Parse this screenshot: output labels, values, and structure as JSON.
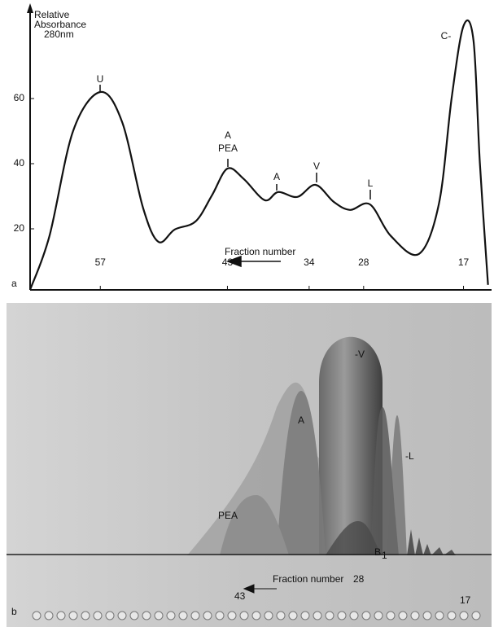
{
  "chart_data": {
    "type": "line",
    "panel_label": "a",
    "y_label": [
      "Relative",
      "Absorbance",
      "280nm"
    ],
    "x_label": "Fraction number",
    "xlim": [
      65,
      14
    ],
    "xticks": [
      57,
      43,
      34,
      28,
      17
    ],
    "ylim": [
      0,
      88
    ],
    "yticks": [
      20,
      40,
      60
    ],
    "grid": false,
    "series": [
      {
        "color": "#111111",
        "x": [
          64.7,
          62.6,
          60,
          57,
          54.6,
          52.3,
          50.6,
          48.8,
          46.5,
          44.7,
          43,
          41.2,
          38.9,
          37.4,
          35.3,
          33.3,
          31.3,
          29.5,
          27.3,
          25,
          21.9,
          19.7,
          18.3,
          17,
          15.9,
          15.2,
          14.3
        ],
        "values": [
          1.5,
          17.8,
          50,
          62,
          52.8,
          26.5,
          16,
          19.8,
          22.3,
          30.3,
          38.5,
          35.3,
          28.8,
          31.3,
          29.8,
          33.5,
          28.3,
          25.8,
          27.5,
          17.8,
          12.3,
          27.8,
          60.3,
          82.3,
          77.8,
          40.3,
          2.8
        ]
      }
    ],
    "annotations": [
      "U",
      "A",
      "PEA",
      "A",
      "V",
      "L",
      "C-"
    ]
  },
  "photo": {
    "panel_label": "b",
    "labels": [
      "-V",
      "A",
      "-L",
      "PEA",
      "B",
      "1"
    ],
    "x_label": "Fraction number",
    "fractions": [
      "43",
      "28",
      "17"
    ]
  }
}
